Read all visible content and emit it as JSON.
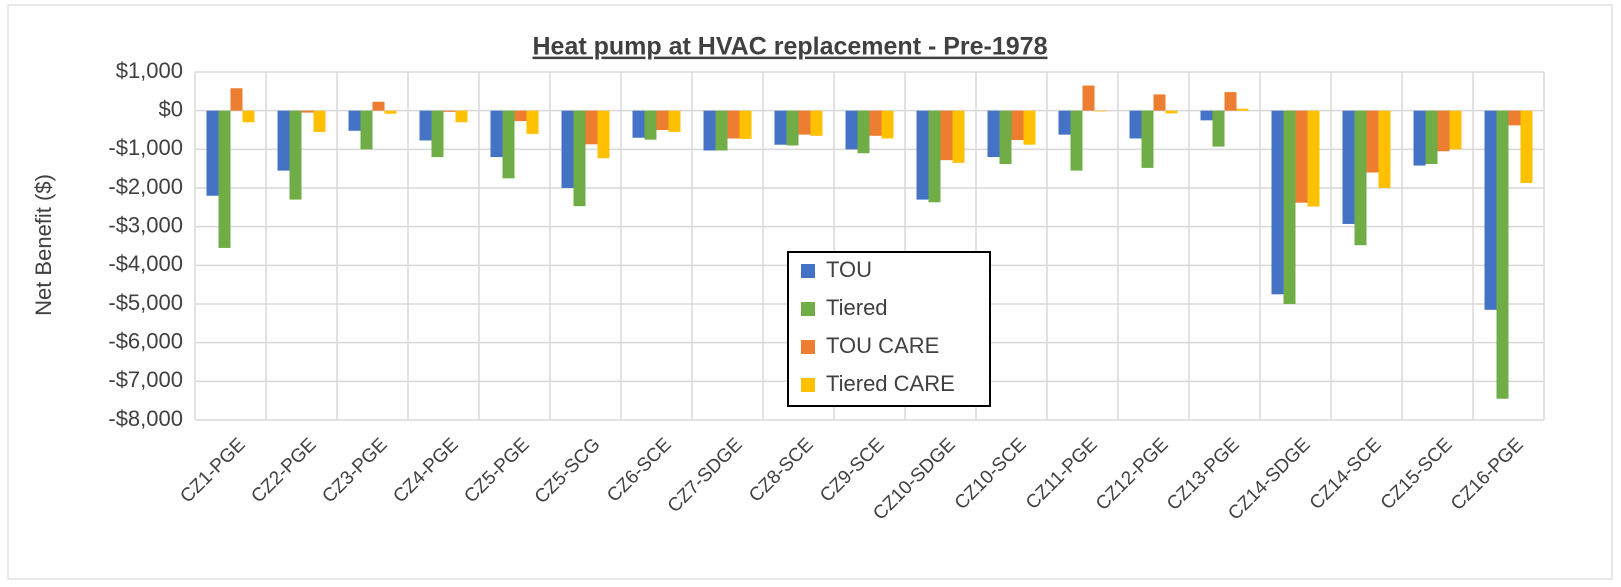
{
  "chart_data": {
    "type": "bar",
    "title": "Heat pump at HVAC replacement - Pre-1978",
    "y_label": "Net Benefit ($)",
    "categories": [
      "CZ1-PGE",
      "CZ2-PGE",
      "CZ3-PGE",
      "CZ4-PGE",
      "CZ5-PGE",
      "CZ5-SCG",
      "CZ6-SCE",
      "CZ7-SDGE",
      "CZ8-SCE",
      "CZ9-SCE",
      "CZ10-SDGE",
      "CZ10-SCE",
      "CZ11-PGE",
      "CZ12-PGE",
      "CZ13-PGE",
      "CZ14-SDGE",
      "CZ14-SCE",
      "CZ15-SCE",
      "CZ16-PGE"
    ],
    "series": [
      {
        "name": "TOU",
        "color": "#4472c4",
        "values": [
          -2200,
          -1550,
          -520,
          -770,
          -1200,
          -2000,
          -700,
          -1030,
          -880,
          -1000,
          -2300,
          -1200,
          -620,
          -720,
          -250,
          -4750,
          -2930,
          -1420,
          -5150
        ]
      },
      {
        "name": "Tiered",
        "color": "#70ad47",
        "values": [
          -3550,
          -2300,
          -1000,
          -1200,
          -1750,
          -2470,
          -750,
          -1030,
          -900,
          -1100,
          -2370,
          -1380,
          -1550,
          -1480,
          -930,
          -5000,
          -3480,
          -1380,
          -7450
        ]
      },
      {
        "name": "TOU CARE",
        "color": "#ed7d31",
        "values": [
          580,
          -50,
          230,
          -30,
          -270,
          -870,
          -500,
          -720,
          -620,
          -650,
          -1280,
          -760,
          650,
          420,
          480,
          -2380,
          -1600,
          -1050,
          -380
        ]
      },
      {
        "name": "Tiered CARE",
        "color": "#ffc000",
        "values": [
          -300,
          -550,
          -80,
          -300,
          -600,
          -1230,
          -550,
          -730,
          -650,
          -720,
          -1350,
          -880,
          -20,
          -70,
          50,
          -2480,
          -2000,
          -1000,
          -1870
        ]
      }
    ],
    "ylim": [
      -8000,
      1000
    ],
    "yticks": [
      {
        "value": 1000,
        "label": "$1,000"
      },
      {
        "value": 0,
        "label": "$0"
      },
      {
        "value": -1000,
        "label": "-$1,000"
      },
      {
        "value": -2000,
        "label": "-$2,000"
      },
      {
        "value": -3000,
        "label": "-$3,000"
      },
      {
        "value": -4000,
        "label": "-$4,000"
      },
      {
        "value": -5000,
        "label": "-$5,000"
      },
      {
        "value": -6000,
        "label": "-$6,000"
      },
      {
        "value": -7000,
        "label": "-$7,000"
      },
      {
        "value": -8000,
        "label": "-$8,000"
      }
    ],
    "grid": true
  }
}
